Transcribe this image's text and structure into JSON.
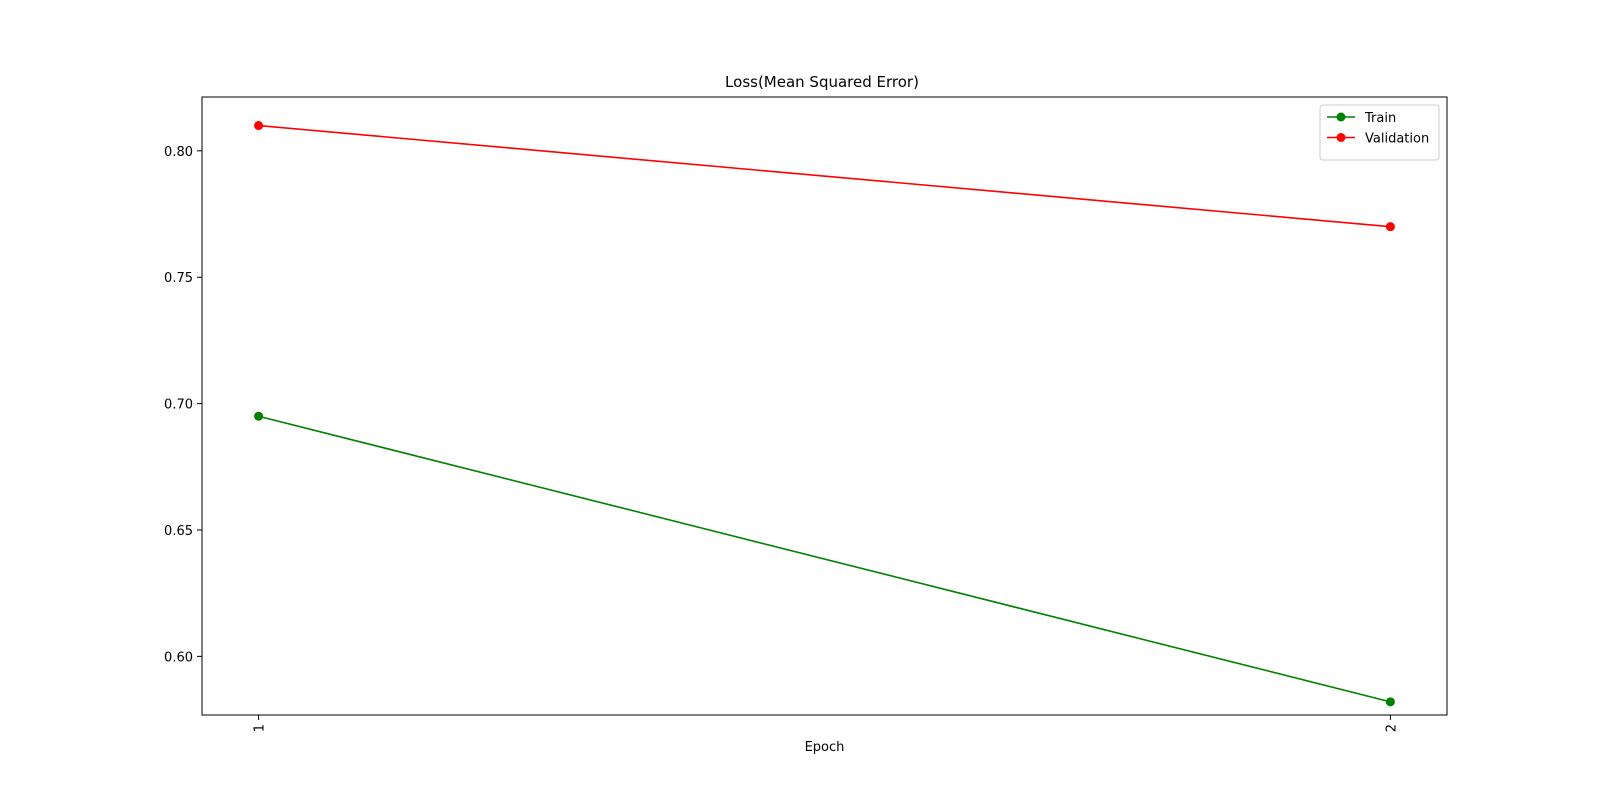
{
  "chart_data": {
    "type": "line",
    "title": "Loss(Mean Squared Error)",
    "xlabel": "Epoch",
    "ylabel": "",
    "categories": [
      "1",
      "2"
    ],
    "x": [
      1,
      2
    ],
    "xlim": [
      0.95,
      2.05
    ],
    "ylim": [
      0.5768,
      0.8213
    ],
    "yticks": [
      0.6,
      0.65,
      0.7,
      0.75,
      0.8
    ],
    "ytick_labels": [
      "0.60",
      "0.65",
      "0.70",
      "0.75",
      "0.80"
    ],
    "grid": false,
    "legend_position": "top-right",
    "series": [
      {
        "name": "Train",
        "color": "#008000",
        "marker": "circle",
        "values": [
          0.695,
          0.582
        ]
      },
      {
        "name": "Validation",
        "color": "#ff0000",
        "marker": "circle",
        "values": [
          0.81,
          0.77
        ]
      }
    ]
  }
}
